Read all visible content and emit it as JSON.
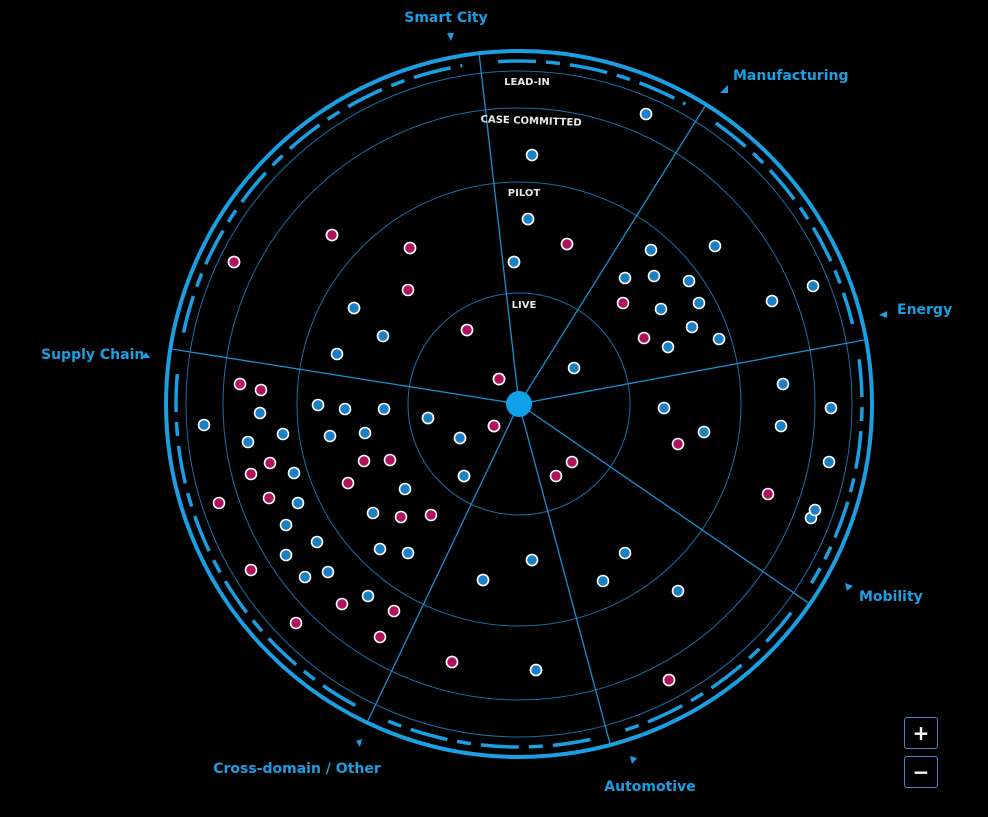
{
  "rings": [
    "LIVE",
    "PILOT",
    "CASE COMMITTED",
    "LEAD-IN"
  ],
  "sectors": [
    "Smart City",
    "Manufacturing",
    "Energy",
    "Mobility",
    "Automotive",
    "Cross-domain / Other",
    "Supply Chain"
  ],
  "colors": {
    "accent": "#1a9fe3",
    "blue_dot": "#1b7fc4",
    "magenta_dot": "#b0125e",
    "background": "#000000"
  },
  "controls": {
    "zoom_in": "+",
    "zoom_out": "−"
  },
  "icons": {
    "sector_marker": "triangle-marker-icon",
    "center": "radar-center-icon"
  },
  "chart_data": {
    "type": "radar",
    "ring_order_inner_to_outer": [
      "LIVE",
      "PILOT",
      "CASE COMMITTED",
      "LEAD-IN"
    ],
    "points": [
      {
        "sector": "Smart City",
        "ring": "LEAD-IN",
        "color": "blue"
      },
      {
        "sector": "Smart City",
        "ring": "CASE COMMITTED",
        "color": "blue"
      },
      {
        "sector": "Smart City",
        "ring": "PILOT",
        "color": "blue"
      },
      {
        "sector": "Smart City",
        "ring": "PILOT",
        "color": "magenta"
      },
      {
        "sector": "Smart City",
        "ring": "PILOT",
        "color": "blue"
      },
      {
        "sector": "Manufacturing",
        "ring": "CASE COMMITTED",
        "color": "blue"
      },
      {
        "sector": "Manufacturing",
        "ring": "CASE COMMITTED",
        "color": "blue"
      },
      {
        "sector": "Manufacturing",
        "ring": "LEAD-IN",
        "color": "blue"
      },
      {
        "sector": "Manufacturing",
        "ring": "PILOT",
        "color": "blue"
      },
      {
        "sector": "Manufacturing",
        "ring": "PILOT",
        "color": "blue"
      },
      {
        "sector": "Manufacturing",
        "ring": "PILOT",
        "color": "blue"
      },
      {
        "sector": "Manufacturing",
        "ring": "PILOT",
        "color": "blue"
      },
      {
        "sector": "Manufacturing",
        "ring": "PILOT",
        "color": "magenta"
      },
      {
        "sector": "Manufacturing",
        "ring": "PILOT",
        "color": "blue"
      },
      {
        "sector": "Manufacturing",
        "ring": "PILOT",
        "color": "blue"
      },
      {
        "sector": "Manufacturing",
        "ring": "PILOT",
        "color": "magenta"
      },
      {
        "sector": "Manufacturing",
        "ring": "PILOT",
        "color": "blue"
      },
      {
        "sector": "Manufacturing",
        "ring": "PILOT",
        "color": "blue"
      },
      {
        "sector": "Manufacturing",
        "ring": "PILOT",
        "color": "blue"
      },
      {
        "sector": "Energy",
        "ring": "LIVE",
        "color": "blue"
      },
      {
        "sector": "Energy",
        "ring": "PILOT",
        "color": "blue"
      },
      {
        "sector": "Energy",
        "ring": "PILOT",
        "color": "magenta"
      },
      {
        "sector": "Energy",
        "ring": "PILOT",
        "color": "blue"
      },
      {
        "sector": "Energy",
        "ring": "CASE COMMITTED",
        "color": "blue"
      },
      {
        "sector": "Energy",
        "ring": "CASE COMMITTED",
        "color": "blue"
      },
      {
        "sector": "Energy",
        "ring": "LEAD-IN",
        "color": "blue"
      },
      {
        "sector": "Energy",
        "ring": "LEAD-IN",
        "color": "blue"
      },
      {
        "sector": "Energy",
        "ring": "CASE COMMITTED",
        "color": "magenta"
      },
      {
        "sector": "Energy",
        "ring": "LEAD-IN",
        "color": "blue"
      },
      {
        "sector": "Energy",
        "ring": "LEAD-IN",
        "color": "blue"
      },
      {
        "sector": "Mobility",
        "ring": "LIVE",
        "color": "magenta"
      },
      {
        "sector": "Mobility",
        "ring": "LIVE",
        "color": "magenta"
      },
      {
        "sector": "Mobility",
        "ring": "PILOT",
        "color": "blue"
      },
      {
        "sector": "Mobility",
        "ring": "PILOT",
        "color": "blue"
      },
      {
        "sector": "Mobility",
        "ring": "PILOT",
        "color": "blue"
      },
      {
        "sector": "Mobility",
        "ring": "CASE COMMITTED",
        "color": "magenta"
      },
      {
        "sector": "Automotive",
        "ring": "PILOT",
        "color": "blue"
      },
      {
        "sector": "Automotive",
        "ring": "PILOT",
        "color": "blue"
      },
      {
        "sector": "Automotive",
        "ring": "CASE COMMITTED",
        "color": "magenta"
      },
      {
        "sector": "Automotive",
        "ring": "CASE COMMITTED",
        "color": "blue"
      },
      {
        "sector": "Automotive",
        "ring": "CASE COMMITTED",
        "color": "magenta"
      },
      {
        "sector": "Supply Chain",
        "ring": "LIVE",
        "color": "magenta"
      },
      {
        "sector": "Supply Chain",
        "ring": "LIVE",
        "color": "magenta"
      },
      {
        "sector": "Supply Chain",
        "ring": "PILOT",
        "color": "magenta"
      },
      {
        "sector": "Supply Chain",
        "ring": "PILOT",
        "color": "blue"
      },
      {
        "sector": "Supply Chain",
        "ring": "PILOT",
        "color": "blue"
      },
      {
        "sector": "Supply Chain",
        "ring": "PILOT",
        "color": "blue"
      },
      {
        "sector": "Supply Chain",
        "ring": "CASE COMMITTED",
        "color": "magenta"
      },
      {
        "sector": "Supply Chain",
        "ring": "LEAD-IN",
        "color": "magenta"
      },
      {
        "sector": "Supply Chain",
        "ring": "CASE COMMITTED",
        "color": "magenta"
      },
      {
        "sector": "Supply Chain",
        "ring": "CASE COMMITTED",
        "color": "blue"
      },
      {
        "sector": "Supply Chain",
        "ring": "LIVE",
        "color": "blue"
      },
      {
        "sector": "Supply Chain",
        "ring": "LIVE",
        "color": "magenta"
      },
      {
        "sector": "Supply Chain",
        "ring": "LIVE",
        "color": "blue"
      },
      {
        "sector": "Supply Chain",
        "ring": "PILOT",
        "color": "blue"
      },
      {
        "sector": "Supply Chain",
        "ring": "PILOT",
        "color": "blue"
      },
      {
        "sector": "Supply Chain",
        "ring": "PILOT",
        "color": "blue"
      },
      {
        "sector": "Supply Chain",
        "ring": "PILOT",
        "color": "blue"
      },
      {
        "sector": "Supply Chain",
        "ring": "PILOT",
        "color": "blue"
      },
      {
        "sector": "Supply Chain",
        "ring": "PILOT",
        "color": "blue"
      },
      {
        "sector": "Supply Chain",
        "ring": "PILOT",
        "color": "magenta"
      },
      {
        "sector": "Supply Chain",
        "ring": "PILOT",
        "color": "magenta"
      },
      {
        "sector": "Supply Chain",
        "ring": "PILOT",
        "color": "blue"
      },
      {
        "sector": "Supply Chain",
        "ring": "PILOT",
        "color": "magenta"
      },
      {
        "sector": "Supply Chain",
        "ring": "PILOT",
        "color": "blue"
      },
      {
        "sector": "Supply Chain",
        "ring": "CASE COMMITTED",
        "color": "magenta"
      },
      {
        "sector": "Supply Chain",
        "ring": "CASE COMMITTED",
        "color": "magenta"
      },
      {
        "sector": "Supply Chain",
        "ring": "CASE COMMITTED",
        "color": "blue"
      },
      {
        "sector": "Supply Chain",
        "ring": "CASE COMMITTED",
        "color": "blue"
      },
      {
        "sector": "Supply Chain",
        "ring": "CASE COMMITTED",
        "color": "blue"
      },
      {
        "sector": "Supply Chain",
        "ring": "CASE COMMITTED",
        "color": "blue"
      },
      {
        "sector": "Supply Chain",
        "ring": "CASE COMMITTED",
        "color": "blue"
      },
      {
        "sector": "Supply Chain",
        "ring": "CASE COMMITTED",
        "color": "magenta"
      },
      {
        "sector": "Supply Chain",
        "ring": "CASE COMMITTED",
        "color": "blue"
      },
      {
        "sector": "Supply Chain",
        "ring": "CASE COMMITTED",
        "color": "magenta"
      },
      {
        "sector": "Supply Chain",
        "ring": "LEAD-IN",
        "color": "blue"
      },
      {
        "sector": "Supply Chain",
        "ring": "LEAD-IN",
        "color": "magenta"
      },
      {
        "sector": "Supply Chain",
        "ring": "CASE COMMITTED",
        "color": "magenta"
      },
      {
        "sector": "Supply Chain",
        "ring": "CASE COMMITTED",
        "color": "magenta"
      },
      {
        "sector": "Supply Chain",
        "ring": "CASE COMMITTED",
        "color": "magenta"
      },
      {
        "sector": "Supply Chain",
        "ring": "CASE COMMITTED",
        "color": "magenta"
      },
      {
        "sector": "Supply Chain",
        "ring": "CASE COMMITTED",
        "color": "magenta"
      },
      {
        "sector": "Supply Chain",
        "ring": "LEAD-IN",
        "color": "magenta"
      },
      {
        "sector": "Supply Chain",
        "ring": "CASE COMMITTED",
        "color": "magenta"
      },
      {
        "sector": "Supply Chain",
        "ring": "LEAD-IN",
        "color": "magenta"
      },
      {
        "sector": "Supply Chain",
        "ring": "PILOT",
        "color": "magenta"
      },
      {
        "sector": "Supply Chain",
        "ring": "PILOT",
        "color": "magenta"
      },
      {
        "sector": "Supply Chain",
        "ring": "PILOT",
        "color": "magenta"
      },
      {
        "sector": "Supply Chain",
        "ring": "PILOT",
        "color": "blue"
      },
      {
        "sector": "Supply Chain",
        "ring": "PILOT",
        "color": "blue"
      },
      {
        "sector": "Supply Chain",
        "ring": "CASE COMMITTED",
        "color": "blue"
      },
      {
        "sector": "Supply Chain",
        "ring": "CASE COMMITTED",
        "color": "magenta"
      },
      {
        "sector": "Supply Chain",
        "ring": "CASE COMMITTED",
        "color": "blue"
      },
      {
        "sector": "Supply Chain",
        "ring": "CASE COMMITTED",
        "color": "magenta"
      },
      {
        "sector": "Supply Chain",
        "ring": "LIVE",
        "color": "blue"
      },
      {
        "sector": "Supply Chain",
        "ring": "LIVE",
        "color": "blue"
      },
      {
        "sector": "Cross-domain / Other",
        "ring": "PILOT",
        "color": "blue"
      },
      {
        "sector": "Cross-domain / Other",
        "ring": "PILOT",
        "color": "blue"
      },
      {
        "sector": "Cross-domain / Other",
        "ring": "CASE COMMITTED",
        "color": "magenta"
      },
      {
        "sector": "Cross-domain / Other",
        "ring": "CASE COMMITTED",
        "color": "blue"
      },
      {
        "sector": "Cross-domain / Other",
        "ring": "LIVE",
        "color": "blue"
      },
      {
        "sector": "Cross-domain / Other",
        "ring": "LIVE",
        "color": "magenta"
      },
      {
        "sector": "Smart City",
        "ring": "PILOT",
        "color": "blue"
      },
      {
        "sector": "Smart City",
        "ring": "PILOT",
        "color": "magenta"
      },
      {
        "sector": "Smart City",
        "ring": "PILOT",
        "color": "blue"
      },
      {
        "sector": "Smart City",
        "ring": "CASE COMMITTED",
        "color": "magenta"
      },
      {
        "sector": "Smart City",
        "ring": "CASE COMMITTED",
        "color": "magenta"
      },
      {
        "sector": "Smart City",
        "ring": "LEAD-IN",
        "color": "magenta"
      },
      {
        "sector": "Smart City",
        "ring": "PILOT",
        "color": "blue"
      },
      {
        "sector": "Smart City",
        "ring": "LIVE",
        "color": "magenta"
      },
      {
        "sector": "Smart City",
        "ring": "LIVE",
        "color": "magenta"
      }
    ]
  }
}
